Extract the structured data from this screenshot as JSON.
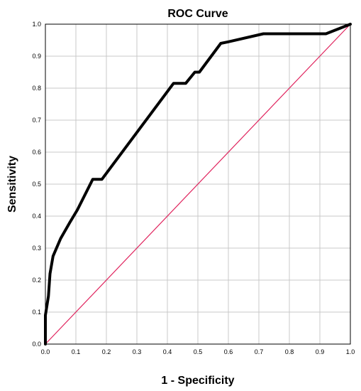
{
  "chart_data": {
    "type": "line",
    "title": "ROC Curve",
    "xlabel": "1 - Specificity",
    "ylabel": "Sensitivity",
    "xlim": [
      0,
      1
    ],
    "ylim": [
      0,
      1
    ],
    "grid": true,
    "x_ticks": [
      "0.0",
      "0.1",
      "0.2",
      "0.3",
      "0.4",
      "0.5",
      "0.6",
      "0.7",
      "0.8",
      "0.9",
      "1.0"
    ],
    "y_ticks": [
      "0.0",
      "0.1",
      "0.2",
      "0.3",
      "0.4",
      "0.5",
      "0.6",
      "0.7",
      "0.8",
      "0.9",
      "1.0"
    ],
    "series": [
      {
        "color": "#000000",
        "points": [
          [
            0.0,
            0.0
          ],
          [
            0.0,
            0.09
          ],
          [
            0.01,
            0.15
          ],
          [
            0.015,
            0.22
          ],
          [
            0.025,
            0.275
          ],
          [
            0.05,
            0.33
          ],
          [
            0.08,
            0.38
          ],
          [
            0.105,
            0.42
          ],
          [
            0.155,
            0.515
          ],
          [
            0.185,
            0.515
          ],
          [
            0.42,
            0.815
          ],
          [
            0.46,
            0.815
          ],
          [
            0.49,
            0.85
          ],
          [
            0.505,
            0.85
          ],
          [
            0.575,
            0.94
          ],
          [
            0.6,
            0.945
          ],
          [
            0.715,
            0.97
          ],
          [
            0.92,
            0.97
          ],
          [
            1.0,
            1.0
          ]
        ]
      },
      {
        "color": "#e0245e",
        "points": [
          [
            0,
            0
          ],
          [
            1,
            1
          ]
        ]
      }
    ]
  }
}
